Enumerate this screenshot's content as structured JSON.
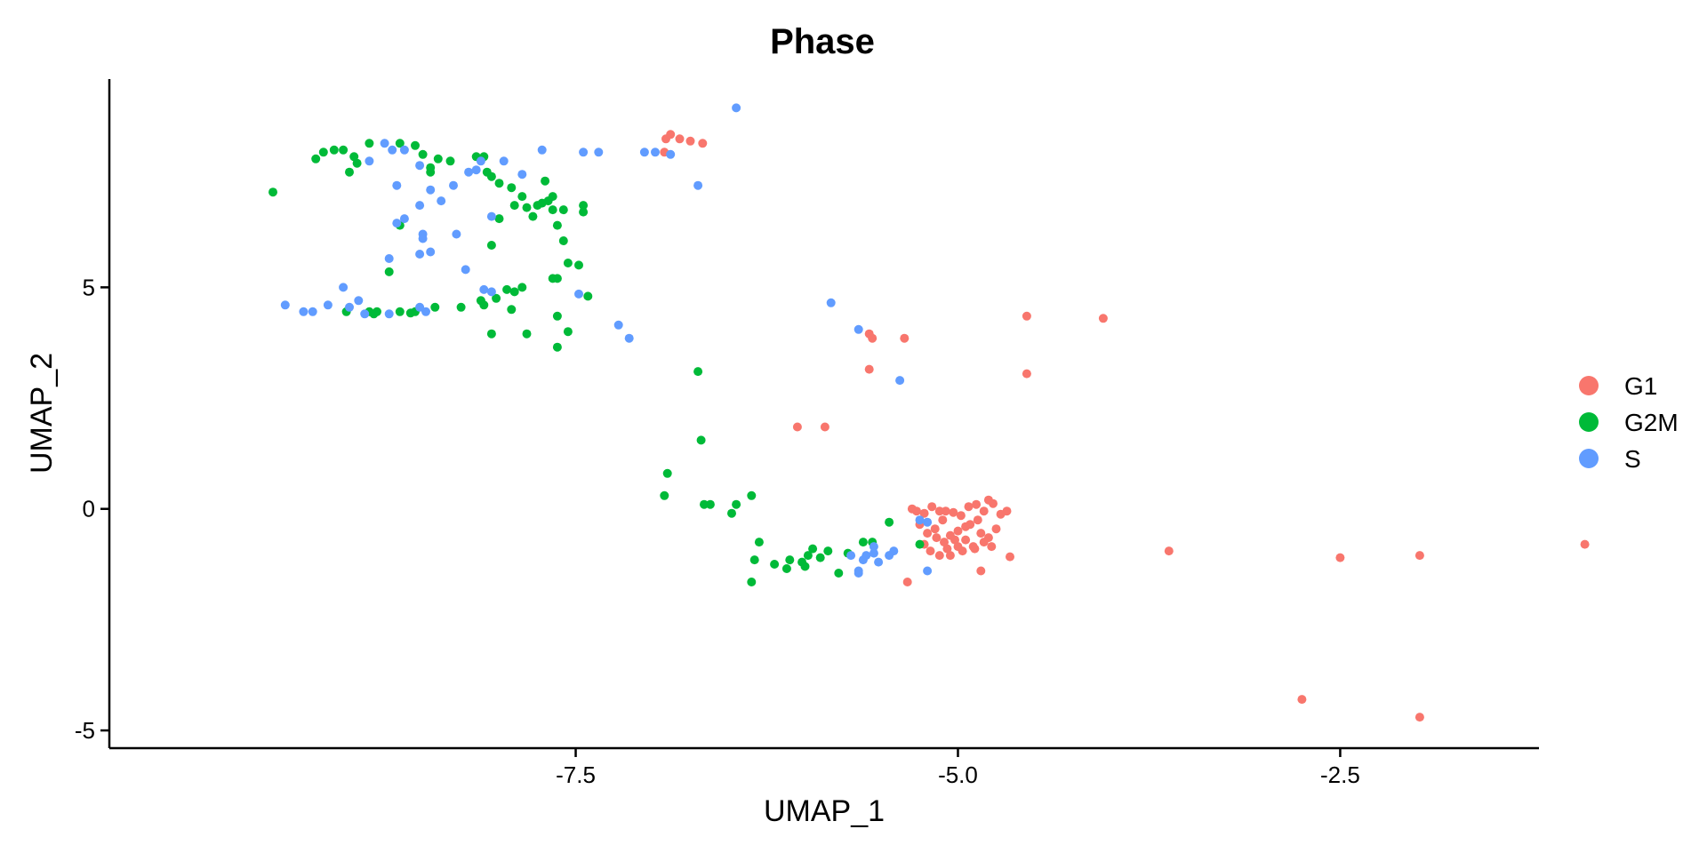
{
  "chart_data": {
    "type": "scatter",
    "title": "Phase",
    "xlabel": "UMAP_1",
    "ylabel": "UMAP_2",
    "xlim": [
      -10.55,
      -1.2
    ],
    "ylim": [
      -5.4,
      9.7
    ],
    "xticks": [
      {
        "value": -7.5,
        "label": "-7.5"
      },
      {
        "value": -5.0,
        "label": "-5.0"
      },
      {
        "value": -2.5,
        "label": "-2.5"
      }
    ],
    "yticks": [
      {
        "value": -5,
        "label": "-5"
      },
      {
        "value": 0,
        "label": "0"
      },
      {
        "value": 5,
        "label": "5"
      }
    ],
    "grid": false,
    "legend_position": "right",
    "series": [
      {
        "name": "G1",
        "color": "#F8766D",
        "points": [
          [
            -6.91,
            8.35
          ],
          [
            -6.88,
            8.45
          ],
          [
            -6.82,
            8.35
          ],
          [
            -6.75,
            8.3
          ],
          [
            -6.67,
            8.25
          ],
          [
            -6.92,
            8.05
          ],
          [
            -5.58,
            3.95
          ],
          [
            -5.56,
            3.85
          ],
          [
            -5.35,
            3.85
          ],
          [
            -5.58,
            3.15
          ],
          [
            -4.55,
            4.35
          ],
          [
            -4.05,
            4.3
          ],
          [
            -4.55,
            3.05
          ],
          [
            -6.05,
            1.85
          ],
          [
            -5.87,
            1.85
          ],
          [
            -5.3,
            0.0
          ],
          [
            -5.27,
            -0.05
          ],
          [
            -5.22,
            -0.1
          ],
          [
            -5.17,
            0.05
          ],
          [
            -5.12,
            -0.05
          ],
          [
            -5.08,
            -0.05
          ],
          [
            -5.03,
            -0.08
          ],
          [
            -4.98,
            -0.15
          ],
          [
            -4.93,
            0.05
          ],
          [
            -4.88,
            0.1
          ],
          [
            -4.83,
            -0.05
          ],
          [
            -4.8,
            0.2
          ],
          [
            -4.77,
            0.12
          ],
          [
            -4.72,
            -0.12
          ],
          [
            -4.68,
            -0.05
          ],
          [
            -5.25,
            -0.35
          ],
          [
            -5.2,
            -0.55
          ],
          [
            -5.15,
            -0.45
          ],
          [
            -5.1,
            -0.25
          ],
          [
            -5.05,
            -0.6
          ],
          [
            -5.0,
            -0.5
          ],
          [
            -4.95,
            -0.7
          ],
          [
            -4.9,
            -0.85
          ],
          [
            -4.85,
            -0.55
          ],
          [
            -4.8,
            -0.65
          ],
          [
            -4.75,
            -0.45
          ],
          [
            -5.22,
            -0.8
          ],
          [
            -5.18,
            -0.95
          ],
          [
            -5.12,
            -1.05
          ],
          [
            -5.07,
            -0.9
          ],
          [
            -5.02,
            -0.7
          ],
          [
            -4.97,
            -0.95
          ],
          [
            -4.92,
            -0.35
          ],
          [
            -4.87,
            -0.25
          ],
          [
            -4.83,
            -0.75
          ],
          [
            -4.78,
            -0.85
          ],
          [
            -5.05,
            -1.05
          ],
          [
            -5.0,
            -0.85
          ],
          [
            -5.14,
            -0.65
          ],
          [
            -5.09,
            -0.75
          ],
          [
            -4.95,
            -0.4
          ],
          [
            -4.89,
            -0.9
          ],
          [
            -4.66,
            -1.08
          ],
          [
            -4.85,
            -1.4
          ],
          [
            -5.33,
            -1.65
          ],
          [
            -3.62,
            -0.95
          ],
          [
            -2.5,
            -1.1
          ],
          [
            -1.98,
            -1.05
          ],
          [
            -0.9,
            -0.8
          ],
          [
            -2.75,
            -4.3
          ],
          [
            -1.98,
            -4.7
          ]
        ]
      },
      {
        "name": "G2M",
        "color": "#00BA38",
        "points": [
          [
            -9.48,
            7.15
          ],
          [
            -9.2,
            7.9
          ],
          [
            -9.15,
            8.05
          ],
          [
            -9.08,
            8.1
          ],
          [
            -9.02,
            8.1
          ],
          [
            -8.98,
            7.6
          ],
          [
            -8.95,
            7.95
          ],
          [
            -8.93,
            7.8
          ],
          [
            -8.85,
            8.25
          ],
          [
            -8.65,
            8.25
          ],
          [
            -8.55,
            8.2
          ],
          [
            -8.5,
            8.0
          ],
          [
            -8.45,
            7.6
          ],
          [
            -8.45,
            7.7
          ],
          [
            -8.4,
            7.9
          ],
          [
            -8.32,
            7.85
          ],
          [
            -8.15,
            7.95
          ],
          [
            -8.1,
            7.95
          ],
          [
            -8.08,
            7.6
          ],
          [
            -8.05,
            7.5
          ],
          [
            -8.0,
            7.35
          ],
          [
            -7.92,
            7.25
          ],
          [
            -7.9,
            6.85
          ],
          [
            -7.85,
            7.05
          ],
          [
            -7.82,
            6.8
          ],
          [
            -7.78,
            6.6
          ],
          [
            -7.75,
            6.85
          ],
          [
            -7.72,
            6.9
          ],
          [
            -7.68,
            6.95
          ],
          [
            -7.65,
            6.75
          ],
          [
            -7.62,
            6.4
          ],
          [
            -7.65,
            7.05
          ],
          [
            -7.7,
            7.4
          ],
          [
            -7.45,
            6.85
          ],
          [
            -7.45,
            6.7
          ],
          [
            -7.58,
            6.05
          ],
          [
            -8.65,
            6.4
          ],
          [
            -8.05,
            5.95
          ],
          [
            -7.58,
            6.75
          ],
          [
            -8.0,
            6.55
          ],
          [
            -7.55,
            5.55
          ],
          [
            -7.48,
            5.5
          ],
          [
            -7.65,
            5.2
          ],
          [
            -7.62,
            5.2
          ],
          [
            -7.85,
            5.0
          ],
          [
            -7.95,
            4.95
          ],
          [
            -7.9,
            4.9
          ],
          [
            -8.02,
            4.75
          ],
          [
            -8.1,
            4.6
          ],
          [
            -8.25,
            4.55
          ],
          [
            -8.42,
            4.55
          ],
          [
            -8.55,
            4.45
          ],
          [
            -8.65,
            4.45
          ],
          [
            -8.8,
            4.45
          ],
          [
            -8.82,
            4.4
          ],
          [
            -8.85,
            4.45
          ],
          [
            -9.0,
            4.45
          ],
          [
            -8.72,
            5.35
          ],
          [
            -8.12,
            4.7
          ],
          [
            -7.92,
            4.5
          ],
          [
            -7.62,
            4.35
          ],
          [
            -7.55,
            4.0
          ],
          [
            -7.62,
            3.65
          ],
          [
            -7.82,
            3.95
          ],
          [
            -8.05,
            3.95
          ],
          [
            -7.42,
            4.8
          ],
          [
            -8.58,
            4.42
          ],
          [
            -6.7,
            3.1
          ],
          [
            -6.68,
            1.55
          ],
          [
            -6.9,
            0.8
          ],
          [
            -6.92,
            0.3
          ],
          [
            -6.66,
            0.1
          ],
          [
            -6.62,
            0.1
          ],
          [
            -6.45,
            0.1
          ],
          [
            -6.48,
            -0.1
          ],
          [
            -6.35,
            0.3
          ],
          [
            -6.3,
            -0.75
          ],
          [
            -6.33,
            -1.15
          ],
          [
            -6.2,
            -1.25
          ],
          [
            -6.1,
            -1.15
          ],
          [
            -6.12,
            -1.35
          ],
          [
            -6.02,
            -1.2
          ],
          [
            -6.0,
            -1.3
          ],
          [
            -5.98,
            -1.05
          ],
          [
            -5.95,
            -0.9
          ],
          [
            -5.9,
            -1.1
          ],
          [
            -5.85,
            -0.95
          ],
          [
            -5.78,
            -1.45
          ],
          [
            -5.72,
            -1.0
          ],
          [
            -5.62,
            -0.75
          ],
          [
            -5.56,
            -0.75
          ],
          [
            -5.45,
            -0.3
          ],
          [
            -5.25,
            -0.8
          ],
          [
            -6.35,
            -1.65
          ]
        ]
      },
      {
        "name": "S",
        "color": "#619CFF",
        "points": [
          [
            -6.45,
            9.05
          ],
          [
            -7.35,
            8.05
          ],
          [
            -7.45,
            8.05
          ],
          [
            -7.05,
            8.05
          ],
          [
            -6.98,
            8.05
          ],
          [
            -6.88,
            8.0
          ],
          [
            -6.7,
            7.3
          ],
          [
            -8.75,
            8.25
          ],
          [
            -8.7,
            8.1
          ],
          [
            -8.62,
            8.1
          ],
          [
            -8.85,
            7.85
          ],
          [
            -8.52,
            7.75
          ],
          [
            -8.45,
            7.2
          ],
          [
            -8.67,
            7.3
          ],
          [
            -8.52,
            6.85
          ],
          [
            -8.38,
            6.95
          ],
          [
            -8.28,
            6.2
          ],
          [
            -8.3,
            7.3
          ],
          [
            -8.2,
            7.6
          ],
          [
            -8.15,
            7.65
          ],
          [
            -8.12,
            7.85
          ],
          [
            -7.97,
            7.85
          ],
          [
            -7.85,
            7.55
          ],
          [
            -7.72,
            8.1
          ],
          [
            -8.05,
            6.6
          ],
          [
            -8.5,
            6.2
          ],
          [
            -8.5,
            6.1
          ],
          [
            -8.45,
            5.8
          ],
          [
            -8.52,
            5.75
          ],
          [
            -8.62,
            6.55
          ],
          [
            -8.67,
            6.45
          ],
          [
            -8.72,
            5.65
          ],
          [
            -8.22,
            5.4
          ],
          [
            -8.1,
            4.95
          ],
          [
            -8.05,
            4.9
          ],
          [
            -9.4,
            4.6
          ],
          [
            -9.28,
            4.45
          ],
          [
            -9.22,
            4.45
          ],
          [
            -9.12,
            4.6
          ],
          [
            -9.02,
            5.0
          ],
          [
            -8.98,
            4.55
          ],
          [
            -8.92,
            4.7
          ],
          [
            -8.88,
            4.4
          ],
          [
            -8.72,
            4.4
          ],
          [
            -8.52,
            4.55
          ],
          [
            -8.48,
            4.45
          ],
          [
            -7.48,
            4.85
          ],
          [
            -7.22,
            4.15
          ],
          [
            -7.15,
            3.85
          ],
          [
            -5.83,
            4.65
          ],
          [
            -5.65,
            4.05
          ],
          [
            -5.38,
            2.9
          ],
          [
            -5.7,
            -1.05
          ],
          [
            -5.65,
            -1.45
          ],
          [
            -5.65,
            -1.4
          ],
          [
            -5.62,
            -1.15
          ],
          [
            -5.6,
            -1.05
          ],
          [
            -5.55,
            -0.85
          ],
          [
            -5.55,
            -1.0
          ],
          [
            -5.52,
            -1.2
          ],
          [
            -5.45,
            -1.05
          ],
          [
            -5.42,
            -0.95
          ],
          [
            -5.2,
            -1.4
          ],
          [
            -5.2,
            -0.3
          ],
          [
            -5.25,
            -0.25
          ]
        ]
      }
    ]
  }
}
